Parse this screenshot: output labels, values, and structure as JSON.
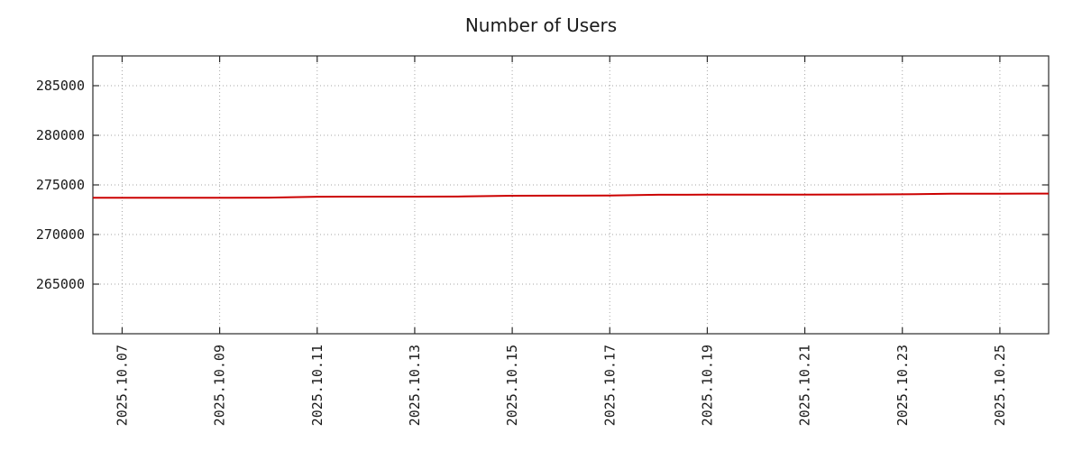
{
  "chart_data": {
    "type": "line",
    "title": "Number of Users",
    "xlabel": "",
    "ylabel": "",
    "x_ticks": [
      "2025.10.07",
      "2025.10.09",
      "2025.10.11",
      "2025.10.13",
      "2025.10.15",
      "2025.10.17",
      "2025.10.19",
      "2025.10.21",
      "2025.10.23",
      "2025.10.25"
    ],
    "y_ticks": [
      265000,
      270000,
      275000,
      280000,
      285000
    ],
    "xlim_days": [
      6.4,
      26
    ],
    "ylim": [
      260000,
      288000
    ],
    "grid": "dotted",
    "legend_position": "none",
    "style": {
      "line_color": "#cc0000",
      "grid_color": "#a6a6a6",
      "border_color": "#2b2b2b",
      "text_color": "#1a1a1a",
      "background": "#ffffff"
    },
    "series": [
      {
        "name": "Number of Users",
        "color": "#cc0000",
        "points": [
          {
            "date": "2025.10.06",
            "value": 273700
          },
          {
            "date": "2025.10.07",
            "value": 273710
          },
          {
            "date": "2025.10.08",
            "value": 273700
          },
          {
            "date": "2025.10.09",
            "value": 273700
          },
          {
            "date": "2025.10.10",
            "value": 273720
          },
          {
            "date": "2025.10.11",
            "value": 273810
          },
          {
            "date": "2025.10.12",
            "value": 273820
          },
          {
            "date": "2025.10.13",
            "value": 273820
          },
          {
            "date": "2025.10.14",
            "value": 273840
          },
          {
            "date": "2025.10.15",
            "value": 273910
          },
          {
            "date": "2025.10.16",
            "value": 273920
          },
          {
            "date": "2025.10.17",
            "value": 273930
          },
          {
            "date": "2025.10.18",
            "value": 274010
          },
          {
            "date": "2025.10.19",
            "value": 274020
          },
          {
            "date": "2025.10.20",
            "value": 274020
          },
          {
            "date": "2025.10.21",
            "value": 274030
          },
          {
            "date": "2025.10.22",
            "value": 274040
          },
          {
            "date": "2025.10.23",
            "value": 274050
          },
          {
            "date": "2025.10.24",
            "value": 274110
          },
          {
            "date": "2025.10.25",
            "value": 274120
          },
          {
            "date": "2025.10.26",
            "value": 274130
          }
        ]
      }
    ]
  }
}
